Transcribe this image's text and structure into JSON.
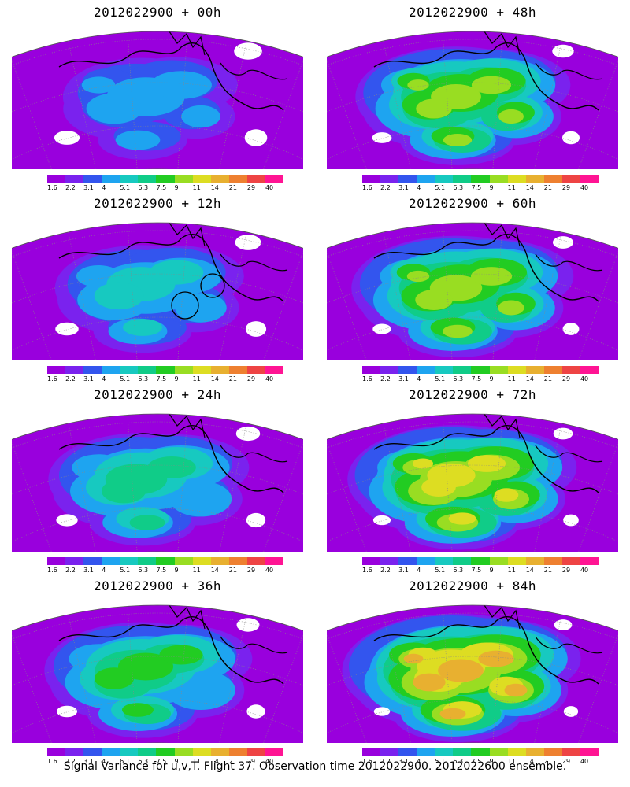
{
  "colorbar": {
    "levels": [
      "1.6",
      "2.2",
      "3.1",
      "4",
      "5.1",
      "6.3",
      "7.5",
      "9",
      "11",
      "14",
      "21",
      "29",
      "40"
    ],
    "colors": [
      "#9900dd",
      "#7a22ee",
      "#3355ee",
      "#1ea4f0",
      "#17c9c0",
      "#10cc88",
      "#22cc22",
      "#99dd22",
      "#dddd22",
      "#e8b030",
      "#ee8030",
      "#ee4444",
      "#ff1493"
    ]
  },
  "panels": [
    {
      "title": "2012022900 + 00h",
      "intensity": 0.18,
      "circles": false
    },
    {
      "title": "2012022900 + 48h",
      "intensity": 0.52,
      "circles": false
    },
    {
      "title": "2012022900 + 12h",
      "intensity": 0.3,
      "circles": true
    },
    {
      "title": "2012022900 + 60h",
      "intensity": 0.58,
      "circles": false
    },
    {
      "title": "2012022900 + 24h",
      "intensity": 0.4,
      "circles": false
    },
    {
      "title": "2012022900 + 72h",
      "intensity": 0.64,
      "circles": false
    },
    {
      "title": "2012022900 + 36h",
      "intensity": 0.46,
      "circles": false
    },
    {
      "title": "2012022900 + 84h",
      "intensity": 0.72,
      "circles": false
    }
  ],
  "caption": "Signal Variance for u,v,T. Flight 37. Observation time 2012022900. 2012022600 ensemble."
}
